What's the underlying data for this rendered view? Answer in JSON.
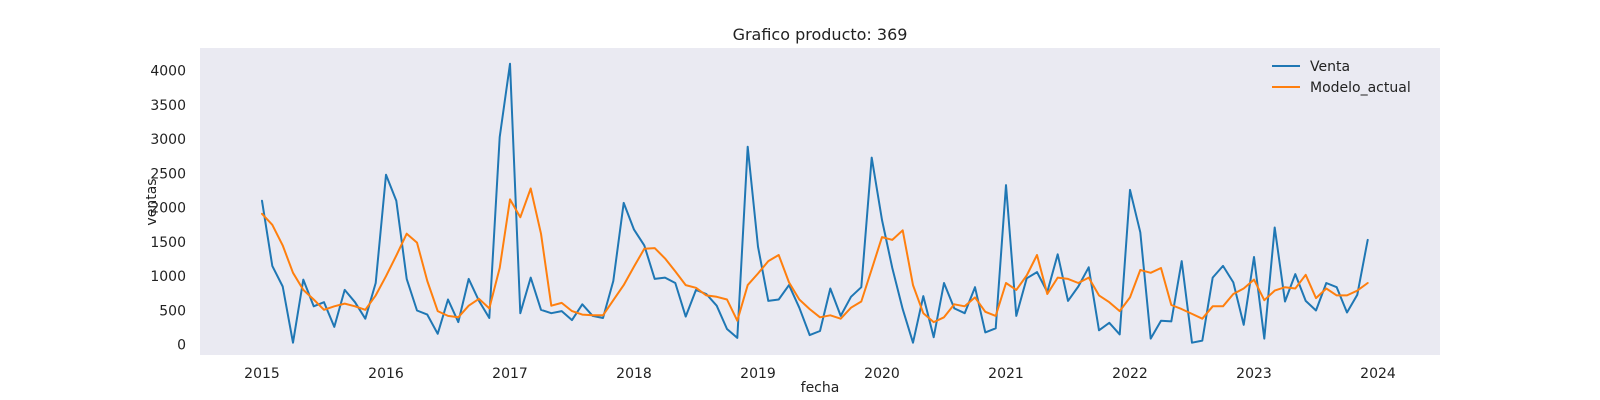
{
  "chart_data": {
    "type": "line",
    "title": "Grafico producto: 369",
    "xlabel": "fecha",
    "ylabel": "ventas",
    "x_start": "2015-01",
    "x_frequency": "monthly",
    "x_ticks": [
      "2015",
      "2016",
      "2017",
      "2018",
      "2019",
      "2020",
      "2021",
      "2022",
      "2023",
      "2024"
    ],
    "y_ticks": [
      0,
      500,
      1000,
      1500,
      2000,
      2500,
      3000,
      3500,
      4000
    ],
    "xlim": [
      "2014-07",
      "2024-07"
    ],
    "ylim": [
      -150,
      4330
    ],
    "grid": false,
    "legend_position": "top-right",
    "background": "#eaeaf2",
    "series": [
      {
        "name": "Venta",
        "color": "#1f77b4",
        "values": [
          2100,
          1150,
          850,
          30,
          950,
          560,
          620,
          260,
          800,
          620,
          380,
          900,
          2480,
          2100,
          960,
          500,
          440,
          160,
          660,
          330,
          960,
          640,
          390,
          3030,
          4100,
          460,
          980,
          510,
          460,
          490,
          360,
          590,
          420,
          390,
          930,
          2070,
          1680,
          1450,
          960,
          980,
          900,
          410,
          800,
          740,
          570,
          230,
          100,
          2890,
          1430,
          640,
          660,
          870,
          540,
          140,
          200,
          820,
          420,
          700,
          840,
          2730,
          1820,
          1120,
          520,
          30,
          710,
          110,
          900,
          530,
          460,
          840,
          180,
          240,
          2330,
          420,
          970,
          1060,
          770,
          1320,
          640,
          850,
          1130,
          210,
          320,
          150,
          2260,
          1640,
          90,
          350,
          340,
          1220,
          30,
          60,
          980,
          1150,
          910,
          290,
          1280,
          90,
          1710,
          630,
          1030,
          640,
          500,
          900,
          840,
          470,
          730,
          1530
        ]
      },
      {
        "name": "Modelo_actual",
        "color": "#ff7f0e",
        "values": [
          1910,
          1750,
          1450,
          1050,
          800,
          660,
          510,
          560,
          600,
          560,
          510,
          720,
          1000,
          1300,
          1620,
          1490,
          930,
          490,
          420,
          400,
          570,
          670,
          530,
          1120,
          2120,
          1860,
          2280,
          1620,
          570,
          610,
          490,
          440,
          430,
          430,
          650,
          870,
          1140,
          1400,
          1410,
          1260,
          1070,
          870,
          830,
          720,
          700,
          660,
          350,
          870,
          1040,
          1220,
          1310,
          910,
          660,
          520,
          400,
          430,
          380,
          540,
          630,
          1100,
          1570,
          1530,
          1670,
          870,
          460,
          330,
          400,
          590,
          560,
          690,
          480,
          420,
          900,
          800,
          1010,
          1310,
          740,
          980,
          960,
          900,
          980,
          720,
          620,
          490,
          690,
          1090,
          1050,
          1120,
          580,
          520,
          450,
          380,
          560,
          560,
          740,
          820,
          950,
          650,
          790,
          840,
          820,
          1020,
          680,
          820,
          720,
          720,
          790,
          900
        ]
      }
    ]
  }
}
